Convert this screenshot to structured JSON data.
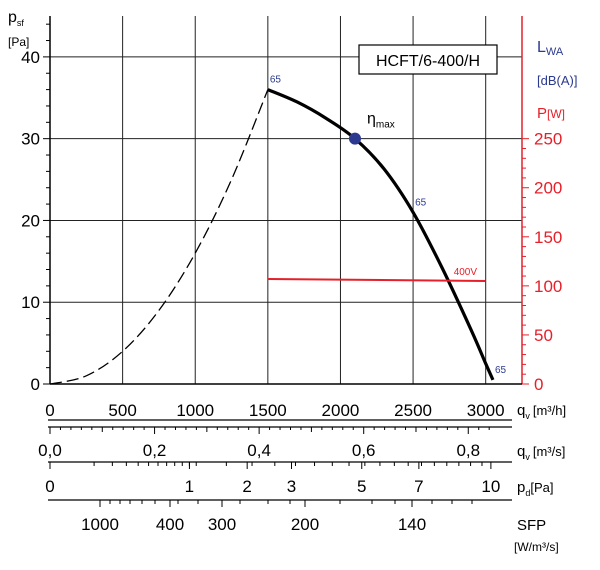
{
  "chart_data": {
    "type": "line",
    "model_label": "HCFT/6-400/H",
    "left_axis": {
      "label": "p",
      "label_sub": "sf",
      "unit": "[Pa]",
      "ticks": [
        0,
        10,
        20,
        30,
        40
      ],
      "ylim": [
        0,
        45
      ]
    },
    "right_axis": {
      "label_lwa": "L",
      "label_lwa_sub": "WA",
      "unit_lwa": "[dB(A)]",
      "label_p": "P",
      "unit_p": "[W]",
      "ticks": [
        0,
        50,
        100,
        150,
        200,
        250
      ],
      "color_lwa": "#2b3a8f",
      "color_p": "#e5202a"
    },
    "x_axis": {
      "ticks": [
        0,
        500,
        1000,
        1500,
        2000,
        2500,
        3000
      ],
      "xlim": [
        0,
        3250
      ],
      "label": "q",
      "label_sub": "v",
      "unit": "[m³/h]"
    },
    "scale_m3s": {
      "label": "q",
      "label_sub": "v",
      "unit": "[m³/s]",
      "ticks": [
        {
          "value": 0.0,
          "label": "0,0"
        },
        {
          "value": 0.2,
          "label": "0,2"
        },
        {
          "value": 0.4,
          "label": "0,4"
        },
        {
          "value": 0.6,
          "label": "0,6"
        },
        {
          "value": 0.8,
          "label": "0,8"
        }
      ]
    },
    "scale_pd": {
      "label": "p",
      "label_sub": "d",
      "unit": "[Pa]",
      "ticks": [
        {
          "value": 0,
          "label": "0"
        },
        {
          "value": 1,
          "label": "1"
        },
        {
          "value": 2,
          "label": "2"
        },
        {
          "value": 3,
          "label": "3"
        },
        {
          "value": 5,
          "label": "5"
        },
        {
          "value": 7,
          "label": "7"
        },
        {
          "value": 10,
          "label": "10"
        }
      ]
    },
    "scale_sfp": {
      "label": "SFP",
      "unit": "[W/m³/s]",
      "ticks": [
        {
          "value": 1000,
          "label": "1000"
        },
        {
          "value": 400,
          "label": "400"
        },
        {
          "value": 300,
          "label": "300"
        },
        {
          "value": 200,
          "label": "200"
        },
        {
          "value": 140,
          "label": "140"
        }
      ]
    },
    "series": [
      {
        "kind": "fan-curve",
        "x": [
          1500,
          1700,
          1900,
          2100,
          2300,
          2500,
          2700,
          2900,
          3000,
          3050
        ],
        "y": [
          36,
          34.5,
          32.5,
          30,
          26.3,
          21,
          14.2,
          6.6,
          2.5,
          0.5
        ],
        "color": "#000000"
      },
      {
        "kind": "system-curve-dashed",
        "x": [
          0,
          250,
          500,
          750,
          1000,
          1250,
          1500
        ],
        "y": [
          0,
          1,
          4,
          9,
          16,
          25,
          36
        ],
        "color": "#000000"
      },
      {
        "kind": "power-line",
        "name": "400V",
        "x": [
          1500,
          3000
        ],
        "y_power": [
          107,
          105
        ],
        "color": "#e5202a"
      }
    ],
    "eta_max": {
      "label": "η",
      "label_sub": "max",
      "x": 2100,
      "y": 30,
      "color": "#2b3a8f"
    },
    "sound_labels": [
      {
        "text": "65",
        "x": 1500,
        "y": 36
      },
      {
        "text": "65",
        "x": 2500,
        "y": 21
      },
      {
        "text": "65",
        "x": 3050,
        "y": 0.5
      }
    ]
  }
}
